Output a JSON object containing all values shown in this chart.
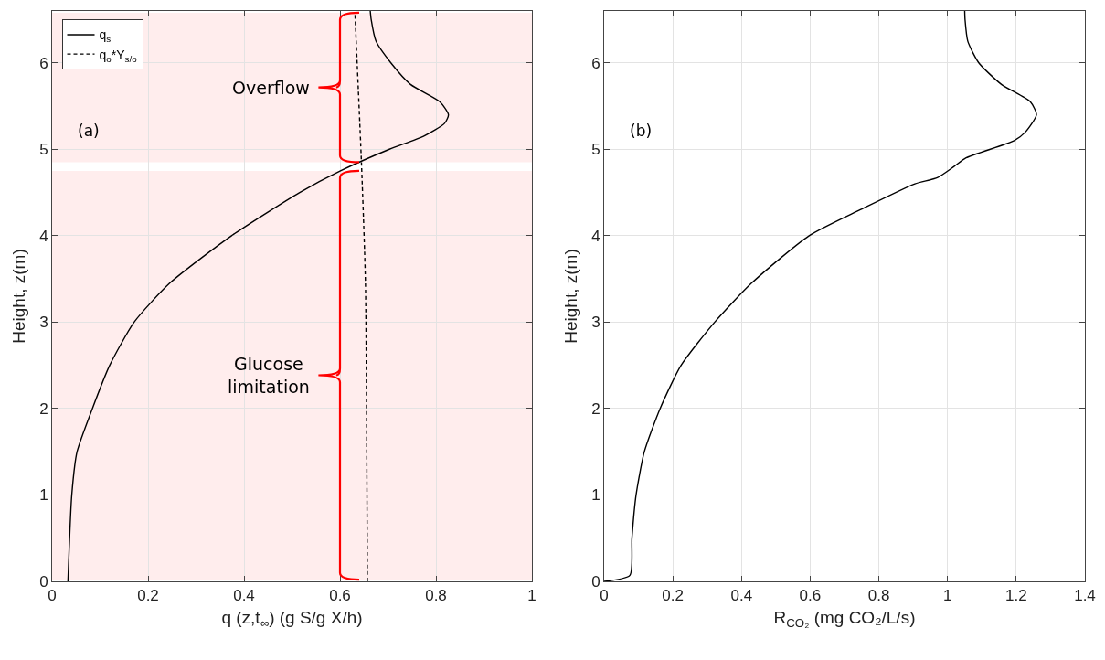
{
  "chart_data": [
    {
      "type": "line",
      "xlabel": "q (z,t$_{∞}$) (g S/g X/h)",
      "ylabel": "Height, z(m)",
      "xlim": [
        0,
        1
      ],
      "xticks": [
        0,
        0.2,
        0.4,
        0.6,
        0.8,
        1
      ],
      "ylim": [
        0,
        6.6
      ],
      "yticks": [
        0,
        1,
        2,
        3,
        4,
        5,
        6
      ],
      "grid": true,
      "legend": "top left",
      "annotations": [
        "(a)"
      ],
      "bands": [
        {
          "axis": "y",
          "from": 4.85,
          "to": 6.58,
          "label": "Overflow",
          "color": "#ff0000"
        },
        {
          "axis": "y",
          "from": 0.02,
          "to": 4.75,
          "label": "Glucose limitation",
          "color": "#ff0000"
        }
      ],
      "series": [
        {
          "name": "q$_{s}$",
          "color": "#000000",
          "line_style": "solid",
          "x": [
            0.033,
            0.041,
            0.052,
            0.084,
            0.12,
            0.171,
            0.245,
            0.374,
            0.516,
            0.601,
            0.703,
            0.774,
            0.818,
            0.826,
            0.808,
            0.747,
            0.706,
            0.675,
            0.665,
            0.663
          ],
          "values": [
            0,
            1,
            1.5,
            2,
            2.5,
            3,
            3.45,
            4,
            4.5,
            4.75,
            5,
            5.15,
            5.3,
            5.4,
            5.55,
            5.75,
            6,
            6.25,
            6.5,
            6.6
          ]
        },
        {
          "name": "q$_{o}$*Y$_{s/o}$",
          "color": "#000000",
          "line_style": "dashed",
          "x": [
            0.657,
            0.653,
            0.645,
            0.631
          ],
          "values": [
            0,
            3.45,
            4.8,
            6.59
          ]
        }
      ]
    },
    {
      "type": "line",
      "xlabel": "R$_{CO₂}$ (mg CO₂/L/s)",
      "ylabel": "Height, z(m)",
      "xlim": [
        0,
        1.4
      ],
      "xticks": [
        0,
        0.2,
        0.4,
        0.6,
        0.8,
        1,
        1.2,
        1.4
      ],
      "ylim": [
        0,
        6.6
      ],
      "yticks": [
        0,
        1,
        2,
        3,
        4,
        5,
        6
      ],
      "grid": true,
      "annotations": [
        "(b)"
      ],
      "series": [
        {
          "color": "#000000",
          "line_style": "solid",
          "x": [
            0,
            0.075,
            0.081,
            0.093,
            0.117,
            0.163,
            0.224,
            0.322,
            0.429,
            0.597,
            0.746,
            0.905,
            0.97,
            1.019,
            1.054,
            1.194,
            1.227,
            1.259,
            1.241,
            1.157,
            1.091,
            1.059,
            1.051,
            1.05
          ],
          "values": [
            0,
            0.07,
            0.5,
            1,
            1.5,
            2,
            2.5,
            3,
            3.45,
            4,
            4.3,
            4.6,
            4.67,
            4.8,
            4.9,
            5.1,
            5.2,
            5.4,
            5.55,
            5.75,
            6,
            6.25,
            6.5,
            6.6
          ]
        }
      ]
    }
  ]
}
